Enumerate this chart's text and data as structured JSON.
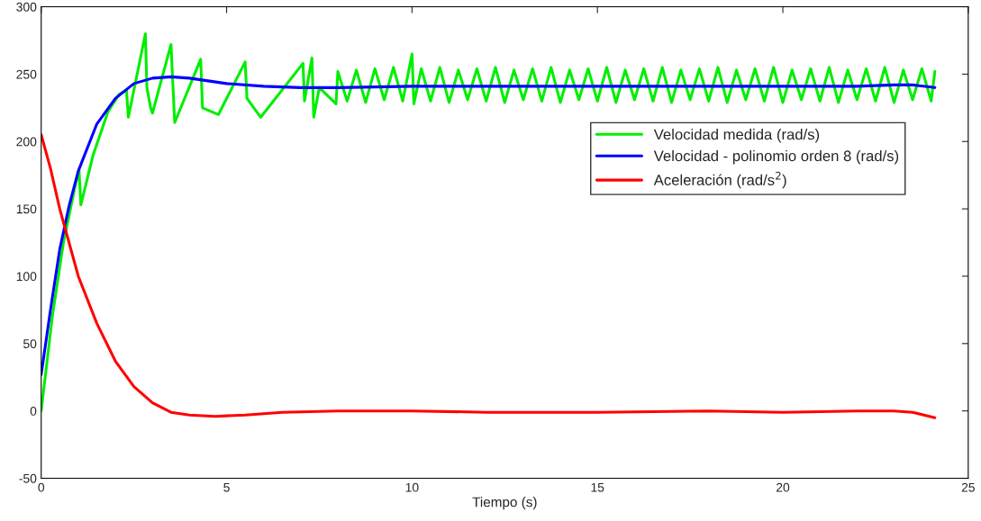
{
  "chart_data": {
    "type": "line",
    "xlabel": "Tiempo (s)",
    "xlim": [
      0,
      25
    ],
    "xticks": [
      0,
      5,
      10,
      15,
      20,
      25
    ],
    "ylim": [
      -50,
      300
    ],
    "yticks": [
      -50,
      0,
      50,
      100,
      150,
      200,
      250,
      300
    ],
    "grid": false,
    "legend": "top right",
    "line_style": "solid",
    "marker": "none",
    "series": [
      {
        "name": "Velocidad medida (rad/s)",
        "color": "#00ee00",
        "x": [
          0,
          0.3,
          0.6,
          0.9,
          1.02,
          1.07,
          1.4,
          1.8,
          2.1,
          2.3,
          2.35,
          2.81,
          2.85,
          2.95,
          3.0,
          3.5,
          3.6,
          4.3,
          4.35,
          4.78,
          5.5,
          5.55,
          5.92,
          7.06,
          7.1,
          7.3,
          7.35,
          7.5,
          7.95,
          8.0,
          8.25,
          8.5,
          8.75,
          9.0,
          9.25,
          9.5,
          9.75,
          10.0,
          10.05,
          10.25,
          10.5,
          10.75,
          11.0,
          11.25,
          11.5,
          11.75,
          12.0,
          12.25,
          12.5,
          12.75,
          13.0,
          13.25,
          13.5,
          13.75,
          14.0,
          14.25,
          14.5,
          14.75,
          15.0,
          15.25,
          15.5,
          15.75,
          16.0,
          16.25,
          16.5,
          16.75,
          17.0,
          17.25,
          17.5,
          17.75,
          18.0,
          18.25,
          18.5,
          18.75,
          19.0,
          19.25,
          19.5,
          19.75,
          20.0,
          20.25,
          20.5,
          20.75,
          21.0,
          21.25,
          21.5,
          21.75,
          22.0,
          22.25,
          22.5,
          22.75,
          23.0,
          23.25,
          23.5,
          23.75,
          24.0,
          24.1
        ],
        "values": [
          0,
          70,
          125,
          165,
          179,
          153,
          190,
          222,
          235,
          238,
          218,
          280,
          240,
          225,
          221,
          272,
          214,
          261,
          225,
          220,
          259,
          232,
          218,
          258,
          230,
          262,
          218,
          240,
          228,
          252,
          230,
          253,
          229,
          254,
          231,
          255,
          230,
          265,
          228,
          254,
          230,
          255,
          229,
          253,
          231,
          254,
          230,
          255,
          229,
          253,
          231,
          254,
          230,
          255,
          229,
          253,
          231,
          254,
          230,
          255,
          229,
          253,
          231,
          254,
          230,
          255,
          229,
          253,
          231,
          254,
          230,
          255,
          229,
          253,
          231,
          254,
          230,
          255,
          229,
          253,
          231,
          254,
          230,
          255,
          229,
          253,
          231,
          254,
          230,
          255,
          229,
          253,
          231,
          254,
          230,
          252
        ]
      },
      {
        "name": "Velocidad - polinomio orden 8 (rad/s)",
        "color": "#0000ff",
        "x": [
          0,
          0.25,
          0.5,
          0.75,
          1,
          1.5,
          2,
          2.5,
          3,
          3.5,
          4,
          5,
          6,
          7,
          8,
          10,
          12,
          15,
          18,
          20,
          22,
          23,
          23.5,
          24.1
        ],
        "values": [
          27,
          75,
          120,
          152,
          178,
          213,
          232,
          243,
          247,
          248,
          247,
          243,
          241,
          240,
          240,
          241,
          241,
          241,
          241,
          241,
          241,
          242,
          242,
          240
        ]
      },
      {
        "name": "Aceleración (rad/s$^{2}$)",
        "color": "#ff0000",
        "x": [
          0,
          0.25,
          0.5,
          0.75,
          1,
          1.5,
          2,
          2.5,
          3,
          3.5,
          4,
          4.7,
          5.5,
          6.5,
          8,
          10,
          12,
          15,
          18,
          20,
          22,
          23,
          23.5,
          24.1
        ],
        "values": [
          205,
          180,
          150,
          125,
          100,
          65,
          37,
          18,
          6,
          -1,
          -3,
          -4,
          -3,
          -1,
          0,
          0,
          -1,
          -1,
          0,
          -1,
          0,
          0,
          -1,
          -5
        ]
      }
    ]
  }
}
